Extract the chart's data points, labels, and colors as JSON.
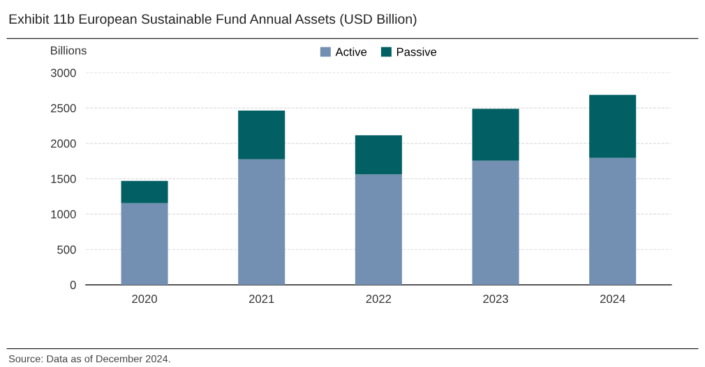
{
  "chart_data": {
    "type": "bar",
    "title": "Exhibit 11b European Sustainable Fund Annual Assets (USD Billion)",
    "ylabel": "Billions",
    "categories": [
      "2020",
      "2021",
      "2022",
      "2023",
      "2024"
    ],
    "series": [
      {
        "name": "Active",
        "color": "#738fb2",
        "values": [
          1155,
          1775,
          1560,
          1755,
          1795
        ]
      },
      {
        "name": "Passive",
        "color": "#025f63",
        "values": [
          315,
          690,
          555,
          735,
          890
        ]
      }
    ],
    "stacked": true,
    "ylim": [
      0,
      3000
    ],
    "yticks": [
      0,
      500,
      1000,
      1500,
      2000,
      2500,
      3000
    ],
    "grid": "y",
    "legend": "top",
    "annotations": [
      "Source: Data as of December 2024."
    ]
  }
}
